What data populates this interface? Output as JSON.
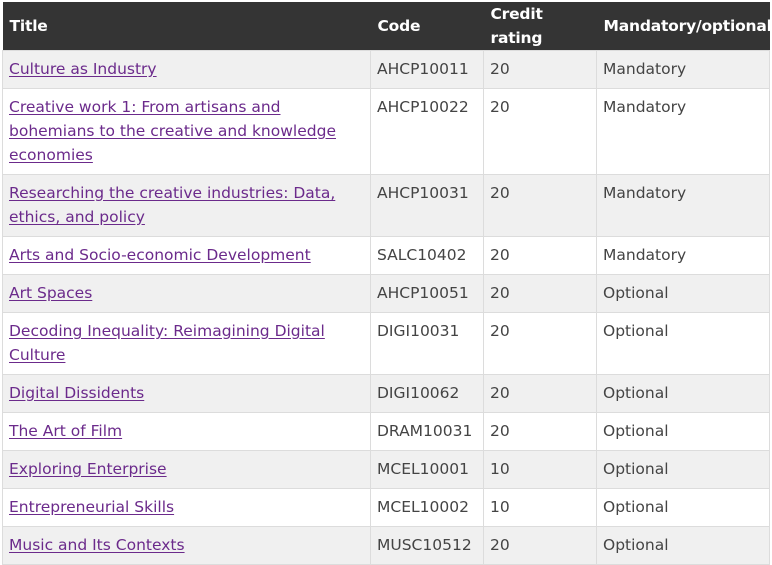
{
  "headers": {
    "title": "Title",
    "code": "Code",
    "credit": "Credit rating",
    "mandatory": "Mandatory/optional"
  },
  "rows": [
    {
      "title": "Culture as Industry",
      "code": "AHCP10011",
      "credit": "20",
      "status": "Mandatory"
    },
    {
      "title": "Creative work 1: From artisans and bohemians to the creative and knowledge economies",
      "code": "AHCP10022",
      "credit": "20",
      "status": "Mandatory"
    },
    {
      "title": "Researching the creative industries: Data, ethics, and policy",
      "code": "AHCP10031",
      "credit": "20",
      "status": "Mandatory"
    },
    {
      "title": "Arts and Socio-economic Development",
      "code": "SALC10402",
      "credit": "20",
      "status": "Mandatory"
    },
    {
      "title": "Art Spaces",
      "code": "AHCP10051",
      "credit": "20",
      "status": "Optional"
    },
    {
      "title": "Decoding Inequality: Reimagining Digital Culture",
      "code": "DIGI10031",
      "credit": "20",
      "status": "Optional"
    },
    {
      "title": "Digital Dissidents",
      "code": "DIGI10062",
      "credit": "20",
      "status": "Optional"
    },
    {
      "title": "The Art of Film",
      "code": "DRAM10031",
      "credit": "20",
      "status": "Optional"
    },
    {
      "title": "Exploring Enterprise",
      "code": "MCEL10001",
      "credit": "10",
      "status": "Optional"
    },
    {
      "title": "Entrepreneurial Skills",
      "code": "MCEL10002",
      "credit": "10",
      "status": "Optional"
    },
    {
      "title": "Music and Its Contexts",
      "code": "MUSC10512",
      "credit": "20",
      "status": "Optional"
    }
  ]
}
